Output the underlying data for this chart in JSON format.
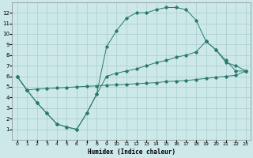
{
  "xlabel": "Humidex (Indice chaleur)",
  "bg_color": "#cce8e8",
  "grid_color": "#aacccc",
  "line_color": "#2a7a6a",
  "xlim": [
    -0.5,
    23.5
  ],
  "ylim": [
    0,
    13
  ],
  "xticks": [
    0,
    1,
    2,
    3,
    4,
    5,
    6,
    7,
    8,
    9,
    10,
    11,
    12,
    13,
    14,
    15,
    16,
    17,
    18,
    19,
    20,
    21,
    22,
    23
  ],
  "yticks": [
    1,
    2,
    3,
    4,
    5,
    6,
    7,
    8,
    9,
    10,
    11,
    12
  ],
  "line1_x": [
    0,
    1,
    2,
    3,
    4,
    5,
    6,
    7,
    8,
    9,
    10,
    11,
    12,
    13,
    14,
    15,
    16,
    17,
    18,
    19,
    20,
    21,
    22,
    23
  ],
  "line1_y": [
    6.0,
    4.7,
    4.8,
    4.85,
    4.9,
    4.95,
    5.0,
    5.05,
    5.1,
    5.15,
    5.2,
    5.25,
    5.3,
    5.35,
    5.4,
    5.5,
    5.55,
    5.6,
    5.7,
    5.8,
    5.9,
    6.0,
    6.1,
    6.5
  ],
  "line2_x": [
    0,
    1,
    2,
    3,
    4,
    5,
    6,
    7,
    8,
    9,
    10,
    11,
    12,
    13,
    14,
    15,
    16,
    17,
    18,
    19,
    20,
    21,
    22,
    23
  ],
  "line2_y": [
    6.0,
    4.7,
    3.5,
    2.5,
    1.5,
    1.2,
    1.0,
    2.5,
    4.3,
    6.0,
    6.3,
    6.5,
    6.7,
    7.0,
    7.3,
    7.5,
    7.8,
    8.0,
    8.3,
    9.3,
    8.5,
    7.5,
    6.5,
    6.5
  ],
  "line3_x": [
    0,
    1,
    2,
    3,
    4,
    5,
    6,
    7,
    8,
    9,
    10,
    11,
    12,
    13,
    14,
    15,
    16,
    17,
    18,
    19,
    20,
    21,
    22,
    23
  ],
  "line3_y": [
    6.0,
    4.7,
    3.5,
    2.5,
    1.5,
    1.2,
    1.0,
    2.5,
    4.3,
    8.8,
    10.3,
    11.5,
    12.0,
    12.0,
    12.3,
    12.5,
    12.5,
    12.3,
    11.3,
    9.3,
    8.5,
    7.3,
    7.0,
    6.5
  ]
}
